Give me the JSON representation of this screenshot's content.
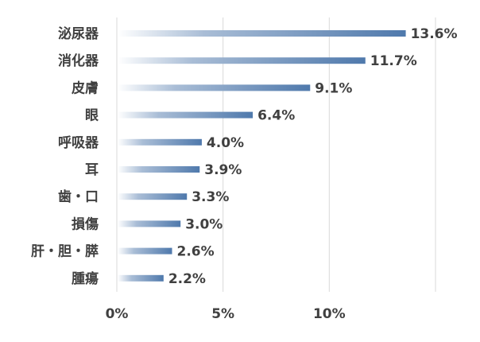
{
  "chart_data": {
    "type": "bar",
    "orientation": "horizontal",
    "categories": [
      "泌尿器",
      "消化器",
      "皮膚",
      "眼",
      "呼吸器",
      "耳",
      "歯・口",
      "損傷",
      "肝・胆・膵",
      "腫瘍"
    ],
    "values": [
      13.6,
      11.7,
      9.1,
      6.4,
      4.0,
      3.9,
      3.3,
      3.0,
      2.6,
      2.2
    ],
    "data_labels": [
      "13.6%",
      "11.7%",
      "9.1%",
      "6.4%",
      "4.0%",
      "3.9%",
      "3.3%",
      "3.0%",
      "2.6%",
      "2.2%"
    ],
    "x_ticks": [
      0,
      5,
      10,
      15
    ],
    "x_tick_labels": [
      "0%",
      "5%",
      "10%",
      ""
    ],
    "xlim": [
      0,
      15
    ],
    "title": "",
    "xlabel": "",
    "ylabel": "",
    "grid": "vertical",
    "legend": "none",
    "colors": {
      "bar_start": "#ffffff",
      "bar_end": "#4f79ac",
      "text": "#404040",
      "gridline": "#d9d9d9"
    }
  }
}
